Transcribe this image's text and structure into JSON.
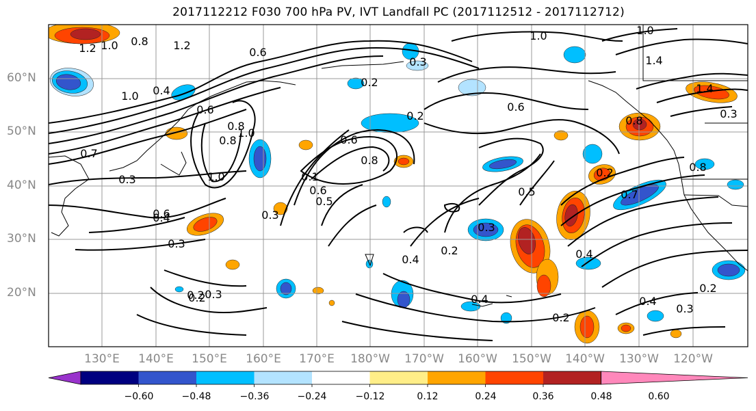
{
  "title": "2017112212 F030 700 hPa PV, IVT Landfall PC (2017112512 - 2017112712)",
  "lat_labels": [
    "60°N",
    "50°N",
    "40°N",
    "30°N",
    "20°N"
  ],
  "lon_labels": [
    "130°E",
    "140°E",
    "150°E",
    "160°E",
    "170°E",
    "180°W",
    "170°W",
    "160°W",
    "150°W",
    "140°W",
    "130°W",
    "120°W"
  ],
  "colorbar": {
    "tick_labels": [
      "−0.60",
      "−0.48",
      "−0.36",
      "−0.24",
      "−0.12",
      "0.12",
      "0.24",
      "0.36",
      "0.48",
      "0.60"
    ],
    "colors": [
      "#9933cc",
      "#000080",
      "#3355cc",
      "#00bfff",
      "#b3e3ff",
      "#ffffff",
      "#ffee88",
      "#ffa500",
      "#ff4400",
      "#b22222",
      "#ff88bb"
    ]
  },
  "contour_labels": [
    "1.2",
    "1.0",
    "0.8",
    "1.2",
    "0.6",
    "0.4",
    "1.0",
    "1.0",
    "0.8",
    "0.6",
    "0.7",
    "0.3",
    "0.6",
    "0.3",
    "0.8",
    "1.0",
    "0.6",
    "0.2",
    "0.6",
    "0.8",
    "0.5",
    "0.1",
    "0.3",
    "0.2",
    "0.3",
    "1.0",
    "0.6",
    "0.3",
    "0.5",
    "0.4",
    "0.2",
    "0.4",
    "0.2",
    "0.4",
    "0.2",
    "0.7",
    "0.4",
    "0.2",
    "0.3",
    "0.2",
    "0.3",
    "0.4",
    "0.2",
    "1.0",
    "1.4",
    "0.8",
    "1.4",
    "0.3",
    "0.8"
  ]
}
